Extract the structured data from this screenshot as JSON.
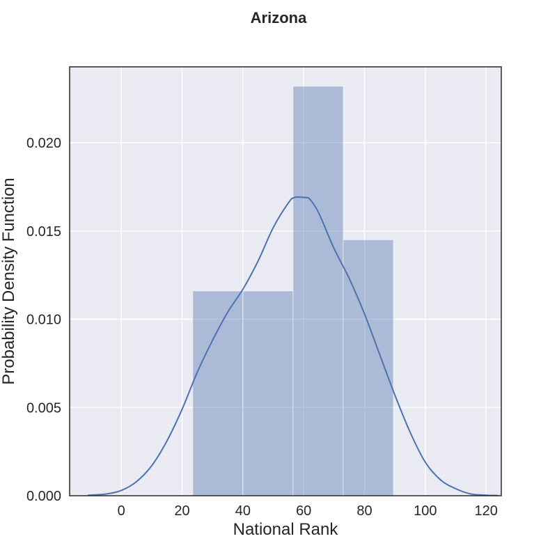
{
  "chart_data": {
    "type": "bar",
    "title": "Arizona",
    "xlabel": "National Rank",
    "ylabel": "Probability Density Function",
    "xlim": [
      -17,
      125
    ],
    "ylim": [
      0,
      0.0243
    ],
    "xticks": [
      0,
      20,
      40,
      60,
      80,
      100,
      120
    ],
    "xtick_labels": [
      "0",
      "20",
      "40",
      "60",
      "80",
      "100",
      "120"
    ],
    "yticks": [
      0,
      0.005,
      0.01,
      0.015,
      0.02
    ],
    "ytick_labels": [
      "0.000",
      "0.005",
      "0.010",
      "0.015",
      "0.020"
    ],
    "grid": true,
    "bar_color": "#4c72b0",
    "line_color": "#4c72b0",
    "background_color": "#eaeaf2",
    "histogram": {
      "bins": [
        {
          "x0": 23.5,
          "x1": 40.0,
          "density": 0.0116
        },
        {
          "x0": 40.0,
          "x1": 56.5,
          "density": 0.0116
        },
        {
          "x0": 56.5,
          "x1": 73.0,
          "density": 0.0232
        },
        {
          "x0": 73.0,
          "x1": 89.5,
          "density": 0.0145
        }
      ]
    },
    "kde": {
      "x": [
        -11,
        -5,
        0,
        5,
        10,
        15,
        20,
        25,
        30,
        35,
        40,
        45,
        50,
        55,
        57,
        60,
        62,
        65,
        70,
        75,
        80,
        85,
        90,
        95,
        100,
        105,
        110,
        115,
        120,
        124
      ],
      "y": [
        3e-05,
        0.0001,
        0.0003,
        0.0008,
        0.0017,
        0.0031,
        0.0049,
        0.007,
        0.0088,
        0.0104,
        0.0117,
        0.0133,
        0.0152,
        0.0166,
        0.0169,
        0.0169,
        0.0168,
        0.016,
        0.014,
        0.0123,
        0.0103,
        0.008,
        0.0057,
        0.0036,
        0.0019,
        0.0009,
        0.0004,
        0.0001,
        3e-05,
        1e-05
      ]
    }
  }
}
